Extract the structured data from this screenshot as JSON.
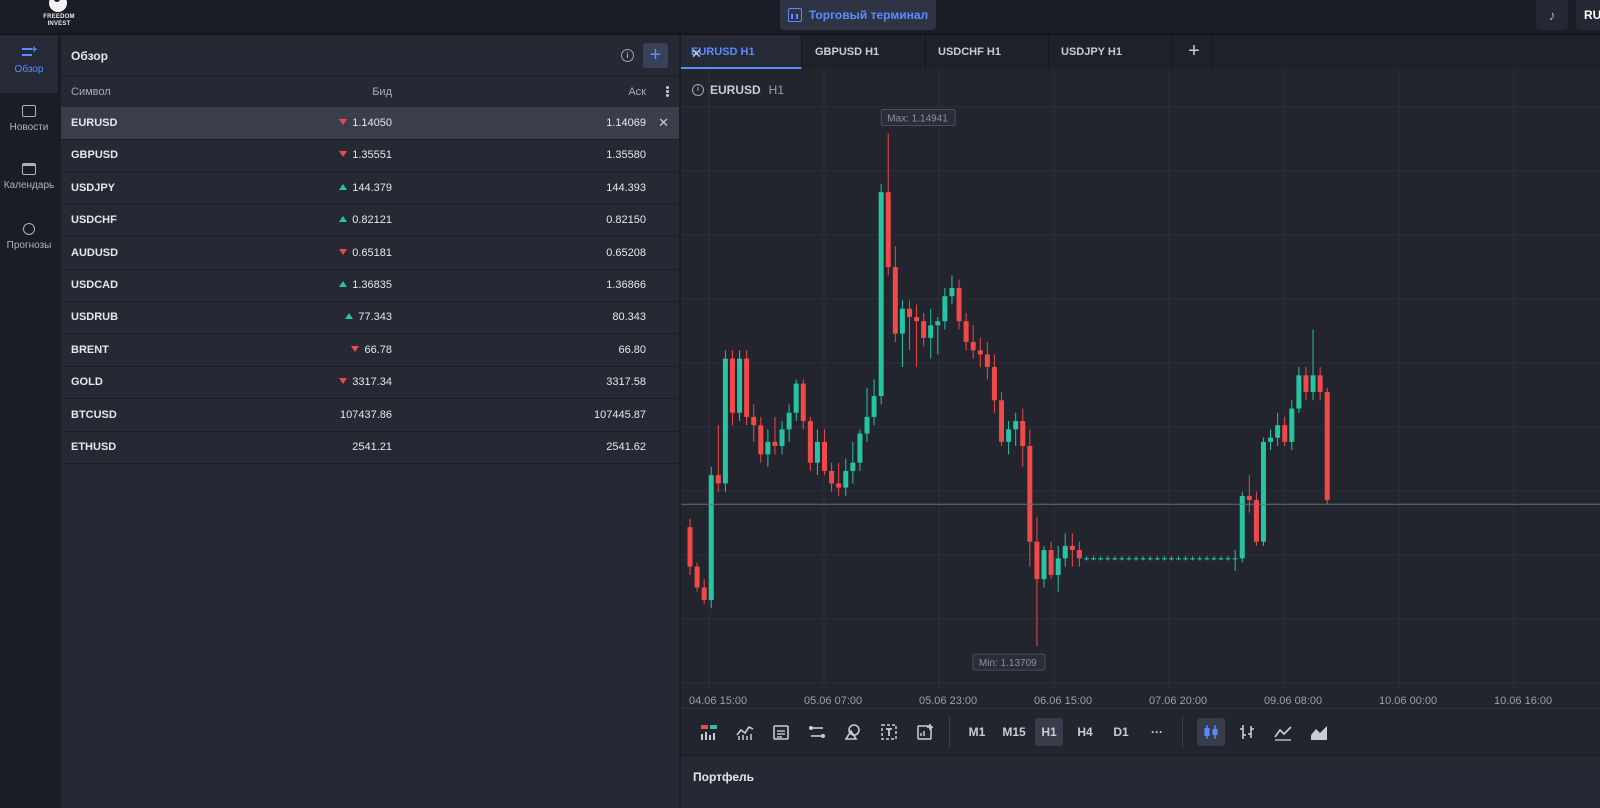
{
  "header": {
    "logo_text": "FREEDOM INVEST",
    "terminal_label": "Торговый терминал",
    "lang_label": "RU"
  },
  "sidebar": {
    "items": [
      {
        "label": "Обзор",
        "icon": "watchlist-icon",
        "active": true
      },
      {
        "label": "Новости",
        "icon": "news-icon",
        "active": false
      },
      {
        "label": "Календарь",
        "icon": "calendar-icon",
        "active": false
      },
      {
        "label": "Прогнозы",
        "icon": "forecast-icon",
        "active": false
      }
    ]
  },
  "watchlist": {
    "title": "Обзор",
    "columns": {
      "symbol": "Символ",
      "bid": "Бид",
      "ask": "Аск"
    },
    "rows": [
      {
        "symbol": "EURUSD",
        "bid": "1.14050",
        "ask": "1.14069",
        "dir": "down",
        "selected": true
      },
      {
        "symbol": "GBPUSD",
        "bid": "1.35551",
        "ask": "1.35580",
        "dir": "down"
      },
      {
        "symbol": "USDJPY",
        "bid": "144.379",
        "ask": "144.393",
        "dir": "up"
      },
      {
        "symbol": "USDCHF",
        "bid": "0.82121",
        "ask": "0.82150",
        "dir": "up"
      },
      {
        "symbol": "AUDUSD",
        "bid": "0.65181",
        "ask": "0.65208",
        "dir": "down"
      },
      {
        "symbol": "USDCAD",
        "bid": "1.36835",
        "ask": "1.36866",
        "dir": "up"
      },
      {
        "symbol": "USDRUB",
        "bid": "77.343",
        "ask": "80.343",
        "dir": "up"
      },
      {
        "symbol": "BRENT",
        "bid": "66.78",
        "ask": "66.80",
        "dir": "down"
      },
      {
        "symbol": "GOLD",
        "bid": "3317.34",
        "ask": "3317.58",
        "dir": "down"
      },
      {
        "symbol": "BTCUSD",
        "bid": "107437.86",
        "ask": "107445.87",
        "dir": ""
      },
      {
        "symbol": "ETHUSD",
        "bid": "2541.21",
        "ask": "2541.62",
        "dir": ""
      }
    ]
  },
  "tabs": [
    {
      "label": "EURUSD H1",
      "active": true
    },
    {
      "label": "GBPUSD H1",
      "active": false
    },
    {
      "label": "USDCHF H1",
      "active": false
    },
    {
      "label": "USDJPY H1",
      "active": false
    }
  ],
  "chart": {
    "symbol": "EURUSD",
    "timeframe": "H1",
    "max_label": "Max: 1.14941",
    "min_label": "Min: 1.13709",
    "x_ticks": [
      "04.06 15:00",
      "05.06 07:00",
      "05.06 23:00",
      "06.06 15:00",
      "07.06 20:00",
      "09.06 08:00",
      "10.06 00:00",
      "10.06 16:00"
    ],
    "colors": {
      "up": "#26c4a1",
      "down": "#f0494a"
    }
  },
  "chart_data": {
    "type": "candlestick",
    "title": "",
    "series": [
      {
        "values": [
          [
            1.13995,
            1.14015,
            1.1388,
            1.139
          ],
          [
            1.139,
            1.1391,
            1.1384,
            1.1385
          ],
          [
            1.1385,
            1.1387,
            1.1381,
            1.1382
          ],
          [
            1.1382,
            1.1414,
            1.138,
            1.1412
          ],
          [
            1.1412,
            1.1424,
            1.1408,
            1.141
          ],
          [
            1.141,
            1.1442,
            1.1408,
            1.144
          ],
          [
            1.144,
            1.1442,
            1.1424,
            1.1427
          ],
          [
            1.1427,
            1.1442,
            1.1425,
            1.144
          ],
          [
            1.144,
            1.1442,
            1.1424,
            1.1426
          ],
          [
            1.1426,
            1.1429,
            1.142,
            1.1424
          ],
          [
            1.1424,
            1.1426,
            1.1415,
            1.1417
          ],
          [
            1.1417,
            1.1423,
            1.1414,
            1.142
          ],
          [
            1.142,
            1.1426,
            1.1417,
            1.1419
          ],
          [
            1.1419,
            1.1425,
            1.1417,
            1.1423
          ],
          [
            1.1423,
            1.1429,
            1.142,
            1.1427
          ],
          [
            1.1427,
            1.1435,
            1.1425,
            1.1434
          ],
          [
            1.1434,
            1.1435,
            1.1423,
            1.1425
          ],
          [
            1.1425,
            1.1426,
            1.1413,
            1.1415
          ],
          [
            1.1415,
            1.1423,
            1.1412,
            1.142
          ],
          [
            1.142,
            1.1423,
            1.1412,
            1.1413
          ],
          [
            1.1413,
            1.1415,
            1.1408,
            1.141
          ],
          [
            1.141,
            1.1415,
            1.1407,
            1.1409
          ],
          [
            1.1409,
            1.1416,
            1.1407,
            1.1413
          ],
          [
            1.1413,
            1.142,
            1.141,
            1.1415
          ],
          [
            1.1415,
            1.1423,
            1.1413,
            1.1422
          ],
          [
            1.1422,
            1.1433,
            1.142,
            1.1426
          ],
          [
            1.1426,
            1.1435,
            1.1424,
            1.1431
          ],
          [
            1.1431,
            1.1482,
            1.1429,
            1.148
          ],
          [
            1.148,
            1.14941,
            1.146,
            1.1462
          ],
          [
            1.1462,
            1.1467,
            1.1444,
            1.1446
          ],
          [
            1.1446,
            1.1454,
            1.1438,
            1.1452
          ],
          [
            1.1452,
            1.1454,
            1.1442,
            1.145
          ],
          [
            1.145,
            1.1453,
            1.1438,
            1.1449
          ],
          [
            1.1449,
            1.1451,
            1.1443,
            1.1445
          ],
          [
            1.1445,
            1.1452,
            1.144,
            1.1448
          ],
          [
            1.1448,
            1.145,
            1.1441,
            1.1449
          ],
          [
            1.1449,
            1.1457,
            1.1447,
            1.1455
          ],
          [
            1.1455,
            1.146,
            1.1453,
            1.1457
          ],
          [
            1.1457,
            1.1459,
            1.1447,
            1.1449
          ],
          [
            1.1449,
            1.1451,
            1.1442,
            1.1444
          ],
          [
            1.1444,
            1.1448,
            1.144,
            1.1442
          ],
          [
            1.1442,
            1.1445,
            1.1438,
            1.1441
          ],
          [
            1.1441,
            1.1444,
            1.1435,
            1.1438
          ],
          [
            1.1438,
            1.1441,
            1.1427,
            1.143
          ],
          [
            1.143,
            1.1432,
            1.1419,
            1.142
          ],
          [
            1.142,
            1.1425,
            1.1417,
            1.1423
          ],
          [
            1.1423,
            1.1427,
            1.1419,
            1.1425
          ],
          [
            1.1425,
            1.1428,
            1.1414,
            1.1419
          ],
          [
            1.1419,
            1.1423,
            1.139,
            1.1396
          ],
          [
            1.1396,
            1.1402,
            1.13709,
            1.1387
          ],
          [
            1.1387,
            1.1395,
            1.1385,
            1.1394
          ],
          [
            1.1394,
            1.1396,
            1.1387,
            1.1388
          ],
          [
            1.1388,
            1.1395,
            1.1384,
            1.1392
          ],
          [
            1.1392,
            1.1398,
            1.139,
            1.1395
          ],
          [
            1.1395,
            1.1398,
            1.139,
            1.1394
          ],
          [
            1.1394,
            1.1396,
            1.139,
            1.1392
          ],
          [
            1.1392,
            1.13925,
            1.13915,
            1.1392
          ],
          [
            1.1392,
            1.13925,
            1.13915,
            1.1392
          ],
          [
            1.1392,
            1.13925,
            1.13915,
            1.1392
          ],
          [
            1.1392,
            1.13925,
            1.13915,
            1.1392
          ],
          [
            1.1392,
            1.13925,
            1.13915,
            1.1392
          ],
          [
            1.1392,
            1.13925,
            1.13915,
            1.1392
          ],
          [
            1.1392,
            1.13925,
            1.13915,
            1.1392
          ],
          [
            1.1392,
            1.13925,
            1.13915,
            1.1392
          ],
          [
            1.1392,
            1.13925,
            1.13915,
            1.1392
          ],
          [
            1.1392,
            1.13925,
            1.13915,
            1.1392
          ],
          [
            1.1392,
            1.13925,
            1.13915,
            1.1392
          ],
          [
            1.1392,
            1.13925,
            1.13915,
            1.1392
          ],
          [
            1.1392,
            1.13925,
            1.13915,
            1.1392
          ],
          [
            1.1392,
            1.13925,
            1.13915,
            1.1392
          ],
          [
            1.1392,
            1.13925,
            1.13915,
            1.1392
          ],
          [
            1.1392,
            1.13925,
            1.13915,
            1.1392
          ],
          [
            1.1392,
            1.13925,
            1.13915,
            1.1392
          ],
          [
            1.1392,
            1.13925,
            1.13915,
            1.1392
          ],
          [
            1.1392,
            1.13925,
            1.13915,
            1.1392
          ],
          [
            1.1392,
            1.13925,
            1.13915,
            1.1392
          ],
          [
            1.1392,
            1.13925,
            1.13915,
            1.1392
          ],
          [
            1.1392,
            1.1394,
            1.1389,
            1.1392
          ],
          [
            1.1392,
            1.1408,
            1.1391,
            1.1407
          ],
          [
            1.1407,
            1.1412,
            1.1403,
            1.1406
          ],
          [
            1.1406,
            1.1408,
            1.1395,
            1.1396
          ],
          [
            1.1396,
            1.1421,
            1.1395,
            1.142
          ],
          [
            1.142,
            1.1423,
            1.1418,
            1.1421
          ],
          [
            1.1421,
            1.1427,
            1.1419,
            1.1424
          ],
          [
            1.1424,
            1.1426,
            1.1419,
            1.142
          ],
          [
            1.142,
            1.143,
            1.1418,
            1.1428
          ],
          [
            1.1428,
            1.1438,
            1.1427,
            1.1436
          ],
          [
            1.1436,
            1.1438,
            1.143,
            1.1432
          ],
          [
            1.1432,
            1.1447,
            1.143,
            1.1436
          ],
          [
            1.1436,
            1.1438,
            1.143,
            1.1432
          ],
          [
            1.1432,
            1.1433,
            1.1405,
            1.1406
          ]
        ]
      }
    ],
    "ylim": [
      1.1363,
      1.15
    ],
    "current_price": 1.1405,
    "x_ticks": [
      "04.06 15:00",
      "05.06 07:00",
      "05.06 23:00",
      "06.06 15:00",
      "07.06 20:00",
      "09.06 08:00",
      "10.06 00:00",
      "10.06 16:00"
    ],
    "grid": true
  },
  "toolbar": {
    "timeframes": [
      "M1",
      "M15",
      "H1",
      "H4",
      "D1"
    ],
    "selected_timeframe": "H1",
    "more_label": "···"
  },
  "portfolio": {
    "title": "Портфель"
  }
}
